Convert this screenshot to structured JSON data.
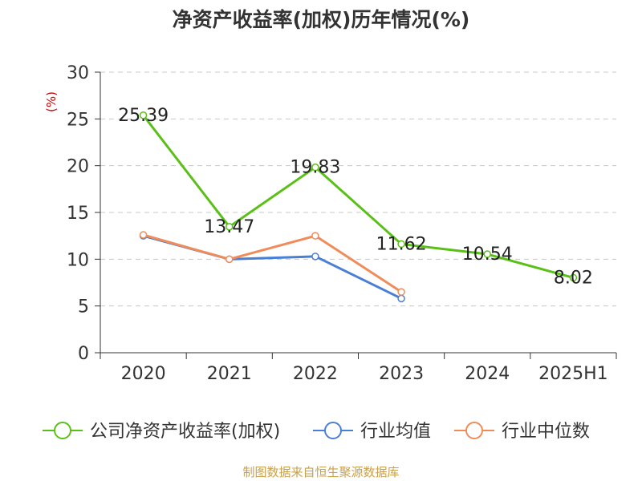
{
  "chart_data": {
    "type": "line",
    "title": "净资产收益率(加权)历年情况(%)",
    "unit_label": "(%)",
    "categories": [
      "2020",
      "2021",
      "2022",
      "2023",
      "2024",
      "2025H1"
    ],
    "ylim": [
      0,
      30
    ],
    "yticks": [
      0,
      5,
      10,
      15,
      20,
      25,
      30
    ],
    "grid": true,
    "legend_position": "bottom",
    "series": [
      {
        "name": "公司净资产收益率(加权)",
        "color": "#5ac018",
        "values": [
          25.39,
          13.47,
          19.83,
          11.62,
          10.54,
          8.02
        ],
        "labels": [
          "25.39",
          "13.47",
          "19.83",
          "11.62",
          "10.54",
          "8.02"
        ]
      },
      {
        "name": "行业均值",
        "color": "#4a7fd6",
        "values": [
          12.5,
          10.0,
          10.3,
          5.8,
          null,
          null
        ]
      },
      {
        "name": "行业中位数",
        "color": "#f08c5a",
        "values": [
          12.6,
          10.0,
          12.5,
          6.5,
          null,
          null
        ]
      }
    ]
  },
  "source": "制图数据来自恒生聚源数据库"
}
